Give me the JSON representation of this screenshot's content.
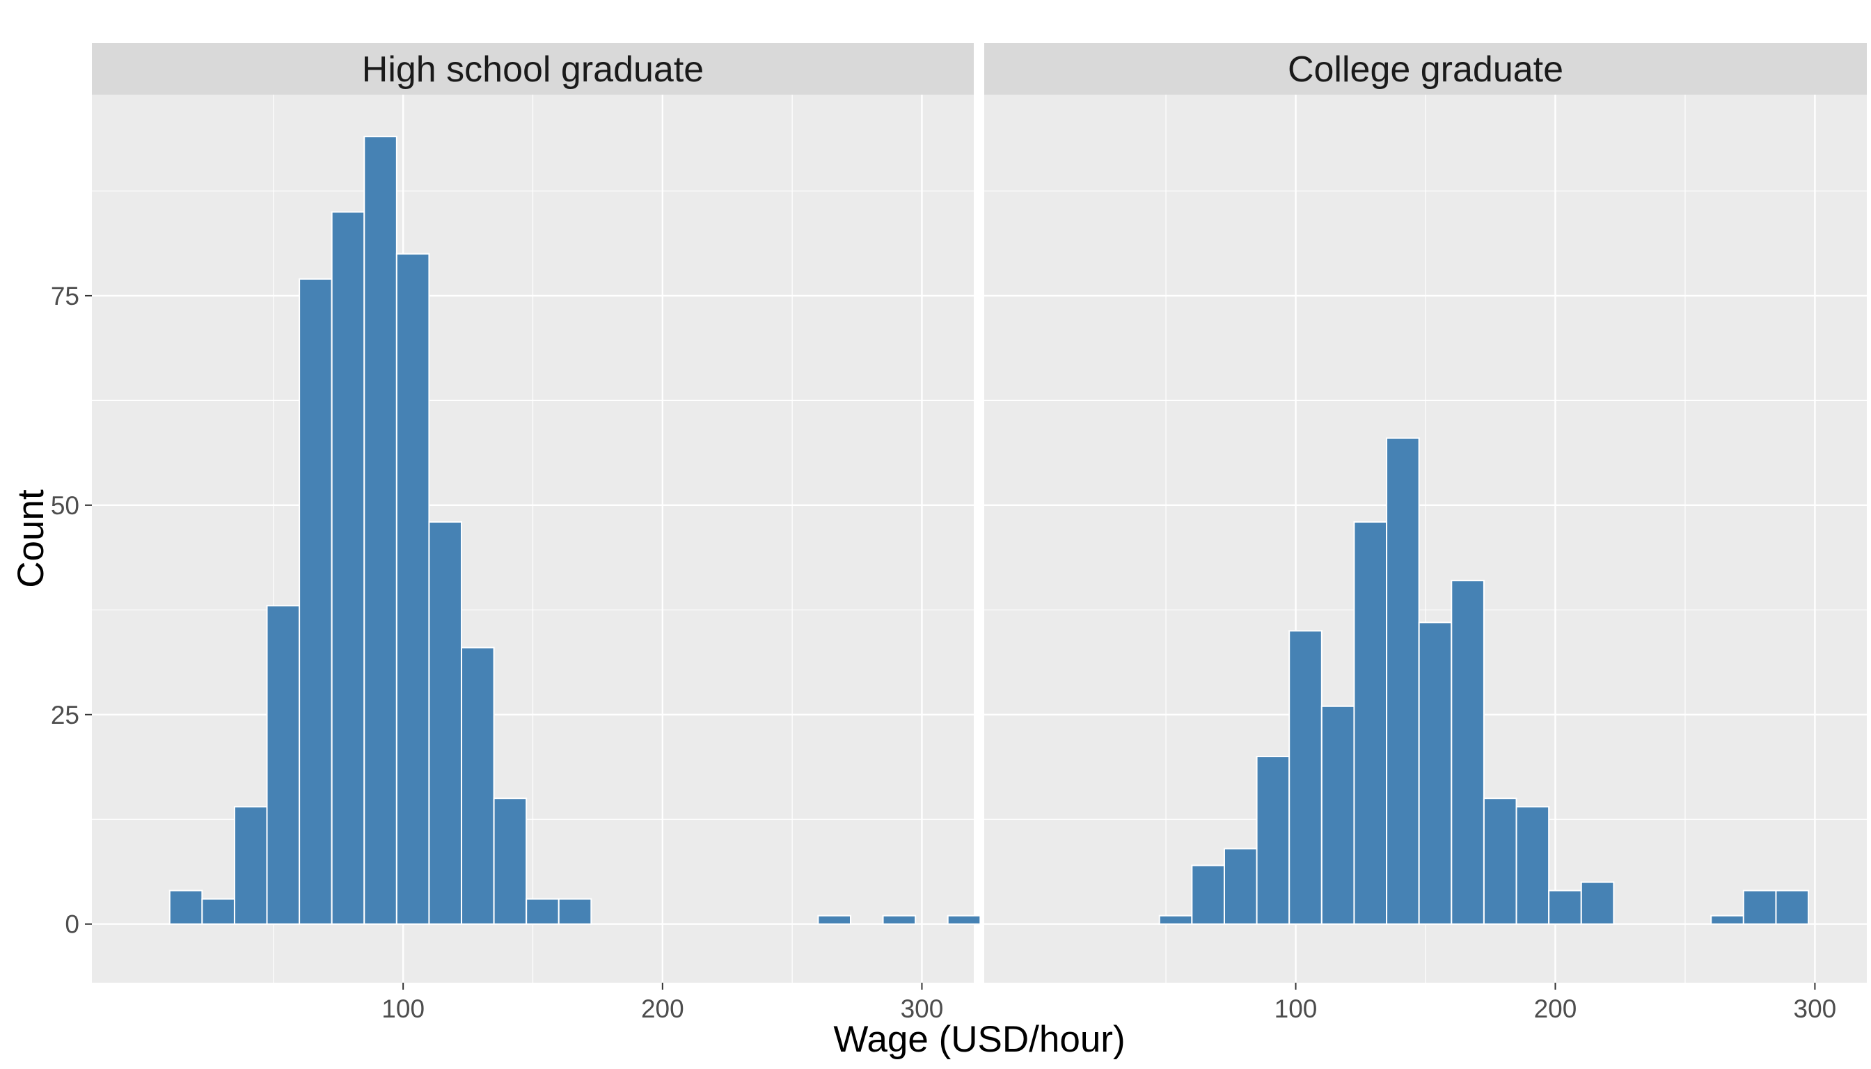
{
  "chart_data": {
    "type": "bar",
    "subtype": "histogram",
    "xlabel": "Wage (USD/hour)",
    "ylabel": "Count",
    "xlim": [
      -20,
      320
    ],
    "ylim": [
      -7,
      99
    ],
    "x_ticks": [
      100,
      200,
      300
    ],
    "y_ticks": [
      0,
      25,
      50,
      75
    ],
    "bin_width": 12.5,
    "fill_color": "#4682B4",
    "bar_outline_color": "#FFFFFF",
    "panel_background": "#EBEBEB",
    "strip_background": "#D9D9D9",
    "grid": true,
    "legend": "none",
    "facets": [
      {
        "title": "High school graduate",
        "bins": [
          {
            "x": 16.25,
            "count": 4
          },
          {
            "x": 28.75,
            "count": 3
          },
          {
            "x": 41.25,
            "count": 14
          },
          {
            "x": 53.75,
            "count": 38
          },
          {
            "x": 66.25,
            "count": 77
          },
          {
            "x": 78.75,
            "count": 85
          },
          {
            "x": 91.25,
            "count": 94
          },
          {
            "x": 103.75,
            "count": 80
          },
          {
            "x": 116.25,
            "count": 48
          },
          {
            "x": 128.75,
            "count": 33
          },
          {
            "x": 141.25,
            "count": 15
          },
          {
            "x": 153.75,
            "count": 3
          },
          {
            "x": 166.25,
            "count": 3
          },
          {
            "x": 266.25,
            "count": 1
          },
          {
            "x": 291.25,
            "count": 1
          },
          {
            "x": 316.25,
            "count": 1
          }
        ]
      },
      {
        "title": "College graduate",
        "bins": [
          {
            "x": 53.75,
            "count": 1
          },
          {
            "x": 66.25,
            "count": 7
          },
          {
            "x": 78.75,
            "count": 9
          },
          {
            "x": 91.25,
            "count": 20
          },
          {
            "x": 103.75,
            "count": 35
          },
          {
            "x": 116.25,
            "count": 26
          },
          {
            "x": 128.75,
            "count": 48
          },
          {
            "x": 141.25,
            "count": 58
          },
          {
            "x": 153.75,
            "count": 36
          },
          {
            "x": 166.25,
            "count": 41
          },
          {
            "x": 178.75,
            "count": 15
          },
          {
            "x": 191.25,
            "count": 14
          },
          {
            "x": 203.75,
            "count": 4
          },
          {
            "x": 216.25,
            "count": 5
          },
          {
            "x": 266.25,
            "count": 1
          },
          {
            "x": 278.75,
            "count": 4
          },
          {
            "x": 291.25,
            "count": 4
          }
        ]
      }
    ]
  }
}
